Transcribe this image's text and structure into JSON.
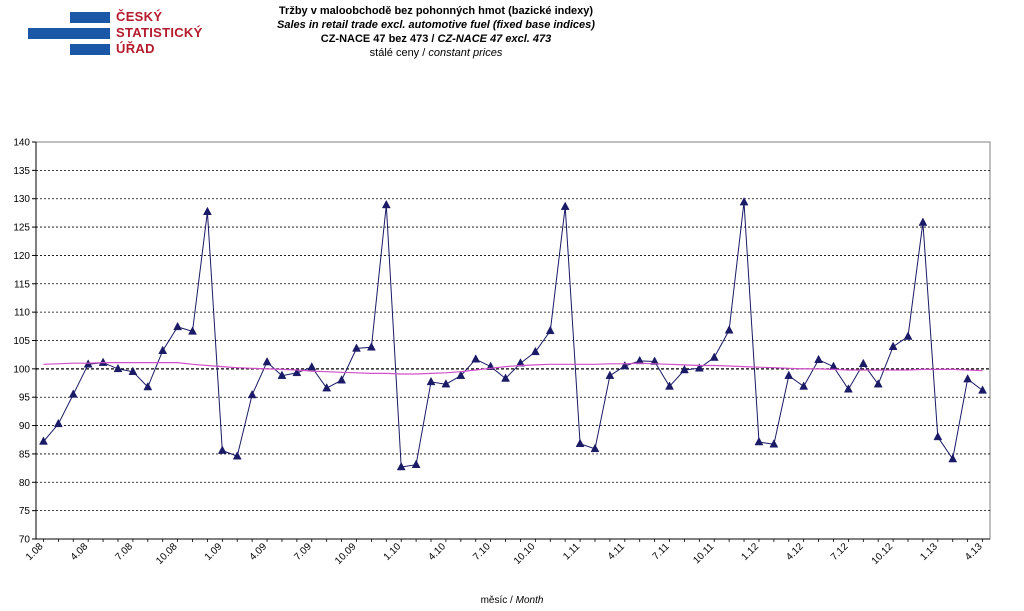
{
  "logo": {
    "line1": "ČESKÝ",
    "line2": "STATISTICKÝ",
    "line3": "ÚŘAD",
    "bar_color": "#1a57a6",
    "text_color": "#b51a2d"
  },
  "header": {
    "title_cz": "Tržby v maloobchodě  bez pohonných  hmot  (bazické indexy)",
    "title_en": "Sales  in retail trade excl. automotive  fuel (fixed base indices)",
    "nace_cz": "CZ-NACE  47 bez 473",
    "nace_sep": " / ",
    "nace_en": "CZ-NACE  47 excl.  473",
    "prices_cz": "stálé  ceny",
    "prices_sep": " / ",
    "prices_en": "constant  prices"
  },
  "xaxis": {
    "label_cz": "měsíc",
    "label_sep": " / ",
    "label_en": "Month"
  },
  "chart_data": {
    "type": "line",
    "x": [
      "1.08",
      "2.08",
      "3.08",
      "4.08",
      "5.08",
      "6.08",
      "7.08",
      "8.08",
      "9.08",
      "10.08",
      "11.08",
      "12.08",
      "1.09",
      "2.09",
      "3.09",
      "4.09",
      "5.09",
      "6.09",
      "7.09",
      "8.09",
      "9.09",
      "10.09",
      "11.09",
      "12.09",
      "1.10",
      "2.10",
      "3.10",
      "4.10",
      "5.10",
      "6.10",
      "7.10",
      "8.10",
      "9.10",
      "10.10",
      "11.10",
      "12.10",
      "1.11",
      "2.11",
      "3.11",
      "4.11",
      "5.11",
      "6.11",
      "7.11",
      "8.11",
      "9.11",
      "10.11",
      "11.11",
      "12.11",
      "1.12",
      "2.12",
      "3.12",
      "4.12",
      "5.12",
      "6.12",
      "7.12",
      "8.12",
      "9.12",
      "10.12",
      "11.12",
      "12.12",
      "1.13",
      "2.13",
      "3.13",
      "4.13"
    ],
    "tick_labels": [
      "1.08",
      "4.08",
      "7.08",
      "10.08",
      "1.09",
      "4.09",
      "7.09",
      "10.09",
      "1.10",
      "4.10",
      "7.10",
      "10.10",
      "1.11",
      "4.11",
      "7.11",
      "10.11",
      "1.12",
      "4.12",
      "7.12",
      "10.12",
      "1.13",
      "4.13"
    ],
    "ylim": [
      70,
      140
    ],
    "yticks": [
      70,
      75,
      80,
      85,
      90,
      95,
      100,
      105,
      110,
      115,
      120,
      125,
      130,
      135,
      140
    ],
    "grid": true,
    "reference_line": 100,
    "series": [
      {
        "color": "#1a1a66",
        "marker": "triangle",
        "values": [
          87.2,
          90.3,
          95.5,
          100.8,
          101.1,
          100.0,
          99.5,
          96.8,
          103.2,
          107.4,
          106.6,
          127.7,
          85.6,
          84.6,
          95.4,
          101.2,
          98.8,
          99.3,
          100.3,
          96.6,
          98.0,
          103.6,
          103.8,
          128.9,
          82.7,
          83.1,
          97.7,
          97.3,
          98.8,
          101.7,
          100.4,
          98.3,
          101.0,
          103.0,
          106.7,
          128.6,
          86.8,
          85.9,
          98.8,
          100.5,
          101.4,
          101.3,
          96.9,
          99.8,
          100.1,
          102.0,
          106.8,
          129.4,
          87.1,
          86.7,
          98.8,
          96.9,
          101.6,
          100.4,
          96.4,
          100.9,
          97.3,
          103.9,
          105.7,
          125.8,
          88.0,
          84.1,
          98.2,
          96.2
        ]
      },
      {
        "color": "#d24fc9",
        "marker": "none",
        "values": [
          100.8,
          100.9,
          101.0,
          101.0,
          101.1,
          101.1,
          101.1,
          101.1,
          101.1,
          101.1,
          100.8,
          100.6,
          100.4,
          100.2,
          100.1,
          100.0,
          99.9,
          99.8,
          99.6,
          99.5,
          99.4,
          99.3,
          99.2,
          99.2,
          99.1,
          99.1,
          99.2,
          99.3,
          99.5,
          99.8,
          100.1,
          100.4,
          100.6,
          100.7,
          100.8,
          100.8,
          100.8,
          100.8,
          100.9,
          100.9,
          101.0,
          100.9,
          100.8,
          100.7,
          100.6,
          100.6,
          100.5,
          100.4,
          100.3,
          100.2,
          100.1,
          100.0,
          100.0,
          99.9,
          99.8,
          99.8,
          99.8,
          99.8,
          99.8,
          99.9,
          99.9,
          99.9,
          99.8,
          99.7
        ]
      }
    ]
  }
}
